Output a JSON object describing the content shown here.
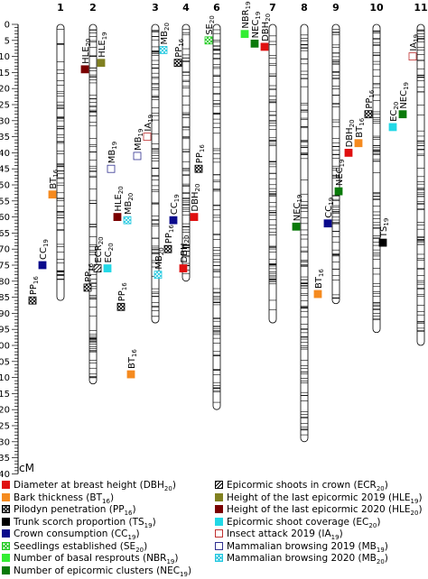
{
  "axis": {
    "unit": "cM",
    "ticks": [
      0,
      5,
      10,
      15,
      20,
      25,
      30,
      35,
      40,
      45,
      50,
      55,
      60,
      65,
      70,
      75,
      80,
      85,
      90,
      95,
      100,
      105,
      110,
      115,
      120,
      125,
      130,
      135,
      140
    ]
  },
  "colors": {
    "DBH": "#e01010",
    "BT": "#f58a1f",
    "PP": "pattern-cross",
    "TS": "#000000",
    "CC": "#0a0a8c",
    "SE": "pattern-green-cross",
    "NBR": "#33ee33",
    "NEC": "#0a7a0a",
    "ECR": "pattern-hatch",
    "HLE19": "#808020",
    "HLE20": "#7a0000",
    "EC": "#22d8e6",
    "IA": "outline-red",
    "MB19": "outline-blue",
    "MB20": "pattern-cyan"
  },
  "chromosomes": [
    {
      "name": "1",
      "length": 86
    },
    {
      "name": "2",
      "length": 112
    },
    {
      "name": "3",
      "length": 93
    },
    {
      "name": "4",
      "length": 80
    },
    {
      "name": "6",
      "length": 120
    },
    {
      "name": "7",
      "length": 93
    },
    {
      "name": "8",
      "length": 130
    },
    {
      "name": "9",
      "length": 87
    },
    {
      "name": "10",
      "length": 96
    },
    {
      "name": "11",
      "length": 100
    }
  ],
  "qtls": [
    {
      "label": "BT16",
      "trait": "BT",
      "chrom": 1,
      "pos": 53,
      "side": "left"
    },
    {
      "label": "CC19",
      "trait": "CC",
      "chrom": 1,
      "pos": 75,
      "side": "left"
    },
    {
      "label": "PP16",
      "trait": "PP",
      "chrom": 1,
      "pos": 86,
      "side": "left"
    },
    {
      "label": "HLE20",
      "trait": "HLE20",
      "chrom": 2,
      "pos": 14,
      "side": "left"
    },
    {
      "label": "HLE19",
      "trait": "HLE19",
      "chrom": 2,
      "pos": 12,
      "side": "right"
    },
    {
      "label": "MB19",
      "trait": "MB19",
      "chrom": 2,
      "pos": 45,
      "side": "right"
    },
    {
      "label": "PP16",
      "trait": "PP",
      "chrom": 2,
      "pos": 88,
      "side": "right"
    },
    {
      "label": "BT16",
      "trait": "BT",
      "chrom": 2,
      "pos": 109,
      "side": "right"
    },
    {
      "label": "MB20",
      "trait": "MB20",
      "chrom": 3,
      "pos": 8,
      "side": "right"
    },
    {
      "label": "IA19",
      "trait": "IA",
      "chrom": 3,
      "pos": 35,
      "side": "left"
    },
    {
      "label": "MB19",
      "trait": "MB19",
      "chrom": 3,
      "pos": 41,
      "side": "left"
    },
    {
      "label": "MB20",
      "trait": "MB20",
      "chrom": 3,
      "pos": 61,
      "side": "left"
    },
    {
      "label": "HLE20",
      "trait": "HLE20",
      "chrom": 3,
      "pos": 60,
      "side": "left"
    },
    {
      "label": "CC19",
      "trait": "CC",
      "chrom": 3,
      "pos": 61,
      "side": "right"
    },
    {
      "label": "EC20",
      "trait": "EC",
      "chrom": 3,
      "pos": 76,
      "side": "left"
    },
    {
      "label": "ECR20",
      "trait": "ECR",
      "chrom": 3,
      "pos": 76,
      "side": "left"
    },
    {
      "label": "DBH20",
      "trait": "DBH",
      "chrom": 3,
      "pos": 76,
      "side": "right"
    },
    {
      "label": "PP16",
      "trait": "PP",
      "chrom": 3,
      "pos": 82,
      "side": "left"
    },
    {
      "label": "PP16",
      "trait": "PP",
      "chrom": 4,
      "pos": 12,
      "side": "left"
    },
    {
      "label": "DBH20",
      "trait": "DBH",
      "chrom": 4,
      "pos": 60,
      "side": "right"
    },
    {
      "label": "PP16",
      "trait": "PP",
      "chrom": 4,
      "pos": 70,
      "side": "left"
    },
    {
      "label": "MB20",
      "trait": "MB20",
      "chrom": 4,
      "pos": 78,
      "side": "left"
    },
    {
      "label": "SE20",
      "trait": "SE",
      "chrom": 6,
      "pos": 5,
      "side": "left"
    },
    {
      "label": "PP16",
      "trait": "PP",
      "chrom": 6,
      "pos": 45,
      "side": "left"
    },
    {
      "label": "DBH20",
      "trait": "DBH",
      "chrom": 7,
      "pos": 7,
      "side": "left"
    },
    {
      "label": "NEC19",
      "trait": "NEC",
      "chrom": 7,
      "pos": 6,
      "side": "left"
    },
    {
      "label": "NBR19",
      "trait": "NBR",
      "chrom": 7,
      "pos": 3,
      "side": "left"
    },
    {
      "label": "NEC19",
      "trait": "NEC",
      "chrom": 8,
      "pos": 63,
      "side": "left"
    },
    {
      "label": "CC19",
      "trait": "CC",
      "chrom": 9,
      "pos": 62,
      "side": "left"
    },
    {
      "label": "BT16",
      "trait": "BT",
      "chrom": 9,
      "pos": 84,
      "side": "left"
    },
    {
      "label": "PP16",
      "trait": "PP",
      "chrom": 10,
      "pos": 28,
      "side": "left"
    },
    {
      "label": "BT16",
      "trait": "BT",
      "chrom": 10,
      "pos": 37,
      "side": "left"
    },
    {
      "label": "DBH20",
      "trait": "DBH",
      "chrom": 10,
      "pos": 40,
      "side": "left"
    },
    {
      "label": "NEC19",
      "trait": "NEC",
      "chrom": 10,
      "pos": 52,
      "side": "left"
    },
    {
      "label": "IA19",
      "trait": "IA",
      "chrom": 11,
      "pos": 10,
      "side": "left"
    },
    {
      "label": "NEC19",
      "trait": "NEC",
      "chrom": 11,
      "pos": 28,
      "side": "left"
    },
    {
      "label": "EC20",
      "trait": "EC",
      "chrom": 11,
      "pos": 32,
      "side": "left"
    },
    {
      "label": "TS19",
      "trait": "TS",
      "chrom": 11,
      "pos": 68,
      "side": "left"
    }
  ],
  "legend_left": [
    {
      "trait": "DBH",
      "text": "Diameter at breast height (DBH20)"
    },
    {
      "trait": "BT",
      "text": "Bark thickness (BT16)"
    },
    {
      "trait": "PP",
      "text": "Pilodyn penetration (PP16)"
    },
    {
      "trait": "TS",
      "text": "Trunk scorch proportion (TS19)"
    },
    {
      "trait": "CC",
      "text": "Crown consumption (CC19)"
    },
    {
      "trait": "SE",
      "text": "Seedlings established (SE20)"
    },
    {
      "trait": "NBR",
      "text": "Number of basal resprouts (NBR19)"
    },
    {
      "trait": "NEC",
      "text": "Number of epicormic clusters (NEC19)"
    }
  ],
  "legend_right": [
    {
      "trait": "ECR",
      "text": "Epicormic shoots in crown (ECR20)"
    },
    {
      "trait": "HLE19",
      "text": "Height of the last epicormic 2019 (HLE19)"
    },
    {
      "trait": "HLE20",
      "text": "Height of the last epicormic 2020 (HLE20)"
    },
    {
      "trait": "EC",
      "text": "Epicormic shoot coverage (EC20)"
    },
    {
      "trait": "IA",
      "text": "Insect attack 2019 (IA19)"
    },
    {
      "trait": "MB19",
      "text": "Mammalian browsing 2019 (MB19)"
    },
    {
      "trait": "MB20",
      "text": "Mammalian browsing 2020 (MB20)"
    }
  ]
}
